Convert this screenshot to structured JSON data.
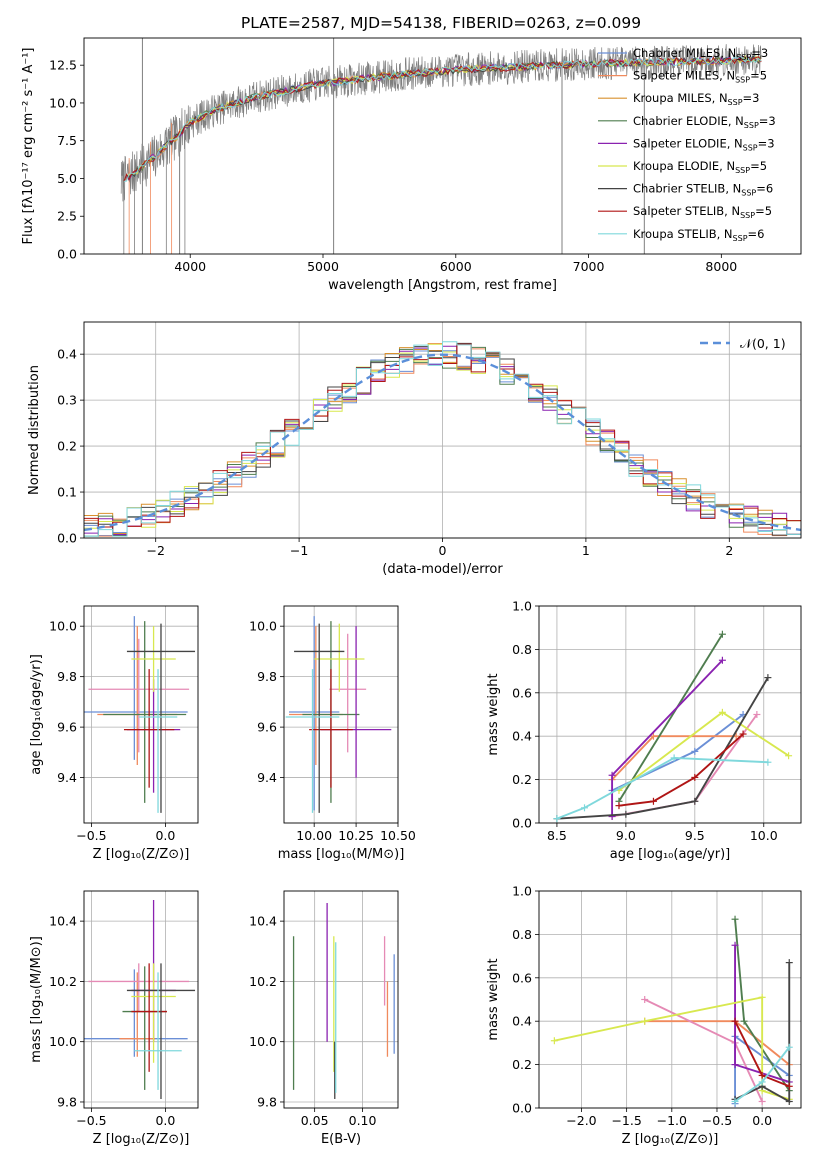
{
  "figure": {
    "title": "PLATE=2587, MJD=54138, FIBERID=0263, z=0.099"
  },
  "colors": {
    "Chabrier MILES": "#6b8fd6",
    "Salpeter MILES": "#f08a5d",
    "Kroupa MILES": "#d9902f",
    "Chabrier ELODIE": "#4f7d4f",
    "Salpeter ELODIE": "#8a22b0",
    "Kroupa ELODIE": "#d8e84f",
    "Chabrier STELIB": "#444444",
    "Salpeter STELIB": "#b01515",
    "Kroupa STELIB": "#7fd8dc",
    "pink": "#e58ab5",
    "normal": "#5b8fd9",
    "spectrum": "#7f7f7f"
  },
  "chart_data": [
    {
      "id": "spectrum",
      "type": "line",
      "xlabel": "wavelength [Angstrom, rest frame]",
      "ylabel": "Flux [fλ10⁻¹⁷ erg cm⁻² s⁻¹ A⁻¹]",
      "xlim": [
        3200,
        8600
      ],
      "ylim": [
        0,
        14.3
      ],
      "xticks": [
        4000,
        5000,
        6000,
        7000,
        8000
      ],
      "yticks": [
        0.0,
        2.5,
        5.0,
        7.5,
        10.0,
        12.5
      ],
      "grid": false,
      "legend_position": "right",
      "legend": [
        {
          "label": "Chabrier MILES, N",
          "sub": "SSP",
          "suffix": "=3",
          "color": "#6b8fd6"
        },
        {
          "label": "Salpeter MILES, N",
          "sub": "SSP",
          "suffix": "=5",
          "color": "#f08a5d"
        },
        {
          "label": "Kroupa MILES, N",
          "sub": "SSP",
          "suffix": "=3",
          "color": "#d9902f"
        },
        {
          "label": "Chabrier ELODIE, N",
          "sub": "SSP",
          "suffix": "=3",
          "color": "#4f7d4f"
        },
        {
          "label": "Salpeter ELODIE, N",
          "sub": "SSP",
          "suffix": "=3",
          "color": "#8a22b0"
        },
        {
          "label": "Kroupa ELODIE, N",
          "sub": "SSP",
          "suffix": "=5",
          "color": "#d8e84f"
        },
        {
          "label": "Chabrier STELIB, N",
          "sub": "SSP",
          "suffix": "=6",
          "color": "#444444"
        },
        {
          "label": "Salpeter STELIB, N",
          "sub": "SSP",
          "suffix": "=5",
          "color": "#b01515"
        },
        {
          "label": "Kroupa STELIB, N",
          "sub": "SSP",
          "suffix": "=6",
          "color": "#7fd8dc"
        }
      ],
      "continuum": {
        "wavelength": [
          3480,
          3600,
          3750,
          3900,
          4000,
          4200,
          4500,
          5000,
          5500,
          6000,
          6500,
          7000,
          7500,
          8000,
          8300
        ],
        "flux": [
          4.8,
          5.5,
          6.6,
          7.8,
          8.7,
          9.6,
          10.4,
          11.3,
          11.8,
          12.2,
          12.4,
          12.6,
          12.7,
          12.8,
          12.9
        ]
      },
      "spikes": [
        {
          "wavelength": 3640,
          "low": 0,
          "high": 14.3
        },
        {
          "wavelength": 3920,
          "low": 0,
          "high": 9.0
        },
        {
          "wavelength": 5080,
          "low": 0,
          "high": 14.3
        },
        {
          "wavelength": 6800,
          "low": 0,
          "high": 12.9
        },
        {
          "wavelength": 7420,
          "low": 0,
          "high": 13.6
        }
      ]
    },
    {
      "id": "residuals",
      "type": "line",
      "xlabel": "(data-model)/error",
      "ylabel": "Normed distribution",
      "xlim": [
        -2.5,
        2.5
      ],
      "ylim": [
        0,
        0.47
      ],
      "xticks": [
        -2,
        -1,
        0,
        1,
        2
      ],
      "yticks": [
        0.0,
        0.1,
        0.2,
        0.3,
        0.4
      ],
      "grid": true,
      "legend_position": "upper right",
      "normal_label": "𝒩(0, 1)",
      "normal": {
        "mu": 0,
        "sigma": 1
      },
      "bin_width": 0.1
    },
    {
      "id": "z-age",
      "type": "scatter",
      "xlabel": "Z [log₁₀(Z/Z⊙)]",
      "ylabel": "age  [log₁₀(age/yr)]",
      "xlim": [
        -0.55,
        0.22
      ],
      "ylim": [
        9.22,
        10.08
      ],
      "xticks": [
        -0.5,
        0.0
      ],
      "yticks": [
        9.4,
        9.6,
        9.8,
        10.0
      ],
      "grid": true,
      "points": [
        {
          "color": "#6b8fd6",
          "x": -0.21,
          "y": 9.66,
          "xerr": 0.36,
          "ylo": 9.47,
          "yhi": 10.04
        },
        {
          "color": "#f08a5d",
          "x": -0.19,
          "y": 9.65,
          "xerr": 0.27,
          "ylo": 9.45,
          "yhi": 10.0
        },
        {
          "color": "#e58ab5",
          "x": -0.18,
          "y": 9.75,
          "xerr": 0.34,
          "ylo": 9.5,
          "yhi": 9.95
        },
        {
          "color": "#4f7d4f",
          "x": -0.14,
          "y": 9.65,
          "xerr": 0.28,
          "ylo": 9.3,
          "yhi": 10.02
        },
        {
          "color": "#8a22b0",
          "x": -0.08,
          "y": 9.59,
          "xerr": 0.18,
          "ylo": 9.34,
          "yhi": 9.79
        },
        {
          "color": "#d8e84f",
          "x": -0.08,
          "y": 9.87,
          "xerr": 0.15,
          "ylo": 9.74,
          "yhi": 10.0
        },
        {
          "color": "#b01515",
          "x": -0.11,
          "y": 9.59,
          "xerr": 0.17,
          "ylo": 9.36,
          "yhi": 9.83
        },
        {
          "color": "#444444",
          "x": -0.03,
          "y": 9.9,
          "xerr": 0.23,
          "ylo": 9.26,
          "yhi": 10.01
        },
        {
          "color": "#7fd8dc",
          "x": -0.05,
          "y": 9.64,
          "xerr": 0.13,
          "ylo": 9.26,
          "yhi": 9.83
        }
      ]
    },
    {
      "id": "mass-age",
      "type": "scatter",
      "xlabel": "mass [log₁₀(M/M⊙)]",
      "ylabel": "",
      "xlim": [
        9.82,
        10.5
      ],
      "ylim": [
        9.22,
        10.08
      ],
      "xticks": [
        10.0,
        10.25,
        10.5
      ],
      "yticks": [
        9.4,
        9.6,
        9.8,
        10.0
      ],
      "grid": true,
      "points": [
        {
          "color": "#6b8fd6",
          "x": 10.0,
          "y": 9.66,
          "xerr": 0.15,
          "ylo": 9.27,
          "yhi": 10.04
        },
        {
          "color": "#f08a5d",
          "x": 10.01,
          "y": 9.65,
          "xerr": 0.16,
          "ylo": 9.45,
          "yhi": 10.0
        },
        {
          "color": "#e58ab5",
          "x": 10.2,
          "y": 9.75,
          "xerr": 0.11,
          "ylo": 9.5,
          "yhi": 9.97
        },
        {
          "color": "#4f7d4f",
          "x": 10.1,
          "y": 9.65,
          "xerr": 0.17,
          "ylo": 9.3,
          "yhi": 10.02
        },
        {
          "color": "#8a22b0",
          "x": 10.25,
          "y": 9.59,
          "xerr": 0.21,
          "ylo": 9.4,
          "yhi": 10.0
        },
        {
          "color": "#d8e84f",
          "x": 10.15,
          "y": 9.87,
          "xerr": 0.15,
          "ylo": 9.74,
          "yhi": 10.01
        },
        {
          "color": "#b01515",
          "x": 10.1,
          "y": 9.59,
          "xerr": 0.13,
          "ylo": 9.36,
          "yhi": 9.83
        },
        {
          "color": "#444444",
          "x": 10.03,
          "y": 9.9,
          "xerr": 0.15,
          "ylo": 9.26,
          "yhi": 10.01
        },
        {
          "color": "#7fd8dc",
          "x": 9.99,
          "y": 9.64,
          "xerr": 0.16,
          "ylo": 9.26,
          "yhi": 9.83
        }
      ]
    },
    {
      "id": "mass-weight-age",
      "type": "line",
      "xlabel": "age  [log₁₀(age/yr)]",
      "ylabel": "mass weight",
      "xlim": [
        8.37,
        10.27
      ],
      "ylim": [
        0,
        1
      ],
      "xticks": [
        8.5,
        9.0,
        9.5,
        10.0
      ],
      "yticks": [
        0.0,
        0.2,
        0.4,
        0.6,
        0.8,
        1.0
      ],
      "grid": true,
      "series": [
        {
          "color": "#6b8fd6",
          "x": [
            8.9,
            9.5,
            9.85
          ],
          "y": [
            0.15,
            0.33,
            0.5
          ]
        },
        {
          "color": "#f08a5d",
          "x": [
            8.9,
            9.2,
            9.8
          ],
          "y": [
            0.2,
            0.4,
            0.4
          ]
        },
        {
          "color": "#e58ab5",
          "x": [
            8.9,
            9.5,
            9.95
          ],
          "y": [
            0.03,
            0.1,
            0.5
          ]
        },
        {
          "color": "#4f7d4f",
          "x": [
            8.95,
            9.7
          ],
          "y": [
            0.1,
            0.87
          ]
        },
        {
          "color": "#8a22b0",
          "x": [
            8.9,
            8.9,
            9.7
          ],
          "y": [
            0.03,
            0.22,
            0.75
          ]
        },
        {
          "color": "#d8e84f",
          "x": [
            8.95,
            9.7,
            10.18
          ],
          "y": [
            0.15,
            0.51,
            0.31
          ]
        },
        {
          "color": "#444444",
          "x": [
            8.5,
            9.0,
            9.5,
            10.03
          ],
          "y": [
            0.02,
            0.04,
            0.1,
            0.67
          ]
        },
        {
          "color": "#b01515",
          "x": [
            8.95,
            9.2,
            9.5,
            9.85
          ],
          "y": [
            0.08,
            0.1,
            0.21,
            0.41
          ]
        },
        {
          "color": "#7fd8dc",
          "x": [
            8.5,
            8.7,
            9.35,
            10.03
          ],
          "y": [
            0.02,
            0.07,
            0.3,
            0.28
          ]
        }
      ]
    },
    {
      "id": "z-mass",
      "type": "scatter",
      "xlabel": "Z [log₁₀(Z/Z⊙)]",
      "ylabel": "mass [log₁₀(M/M⊙)]",
      "xlim": [
        -0.55,
        0.22
      ],
      "ylim": [
        9.78,
        10.5
      ],
      "xticks": [
        -0.5,
        0.0
      ],
      "yticks": [
        9.8,
        10.0,
        10.2,
        10.4
      ],
      "grid": true,
      "points": [
        {
          "color": "#6b8fd6",
          "x": -0.21,
          "y": 10.01,
          "xerr": 0.36,
          "ylo": 9.95,
          "yhi": 10.24
        },
        {
          "color": "#f08a5d",
          "x": -0.19,
          "y": 10.01,
          "xerr": 0.12,
          "ylo": 9.95,
          "yhi": 10.23
        },
        {
          "color": "#e58ab5",
          "x": -0.18,
          "y": 10.2,
          "xerr": 0.34,
          "ylo": 10.1,
          "yhi": 10.26
        },
        {
          "color": "#4f7d4f",
          "x": -0.14,
          "y": 10.1,
          "xerr": 0.15,
          "ylo": 9.84,
          "yhi": 10.25
        },
        {
          "color": "#8a22b0",
          "x": -0.08,
          "y": 10.17,
          "xerr": 0.15,
          "ylo": 10.0,
          "yhi": 10.47
        },
        {
          "color": "#d8e84f",
          "x": -0.08,
          "y": 10.15,
          "xerr": 0.15,
          "ylo": 9.93,
          "yhi": 10.26
        },
        {
          "color": "#b01515",
          "x": -0.11,
          "y": 10.1,
          "xerr": 0.12,
          "ylo": 9.9,
          "yhi": 10.26
        },
        {
          "color": "#444444",
          "x": -0.03,
          "y": 10.17,
          "xerr": 0.23,
          "ylo": 9.81,
          "yhi": 10.26
        },
        {
          "color": "#7fd8dc",
          "x": -0.05,
          "y": 9.97,
          "xerr": 0.16,
          "ylo": 9.84,
          "yhi": 10.23
        }
      ]
    },
    {
      "id": "ebv-mass",
      "type": "scatter",
      "xlabel": "E(B-V)",
      "ylabel": "",
      "xlim": [
        0.018,
        0.137
      ],
      "ylim": [
        9.78,
        10.5
      ],
      "xticks": [
        0.05,
        0.1
      ],
      "yticks": [
        9.8,
        10.0,
        10.2,
        10.4
      ],
      "grid": true,
      "points": [
        {
          "color": "#4f7d4f",
          "x": 0.028,
          "ylo": 9.84,
          "yhi": 10.35
        },
        {
          "color": "#8a22b0",
          "x": 0.063,
          "ylo": 10.0,
          "yhi": 10.46
        },
        {
          "color": "#d8e84f",
          "x": 0.07,
          "ylo": 9.9,
          "yhi": 10.35
        },
        {
          "color": "#444444",
          "x": 0.071,
          "ylo": 9.81,
          "yhi": 10.0
        },
        {
          "color": "#7fd8dc",
          "x": 0.072,
          "ylo": 9.83,
          "yhi": 10.33
        },
        {
          "color": "#e58ab5",
          "x": 0.123,
          "ylo": 10.12,
          "yhi": 10.35
        },
        {
          "color": "#f08a5d",
          "x": 0.126,
          "ylo": 9.95,
          "yhi": 10.2
        },
        {
          "color": "#6b8fd6",
          "x": 0.133,
          "ylo": 9.96,
          "yhi": 10.29
        }
      ]
    },
    {
      "id": "mass-weight-z",
      "type": "line",
      "xlabel": "Z [log₁₀(Z/Z⊙)]",
      "ylabel": "mass weight",
      "xlim": [
        -2.47,
        0.43
      ],
      "ylim": [
        0,
        1
      ],
      "xticks": [
        -2.0,
        -1.5,
        -1.0,
        -0.5,
        0.0
      ],
      "yticks": [
        0.0,
        0.2,
        0.4,
        0.6,
        0.8,
        1.0
      ],
      "grid": true,
      "series": [
        {
          "color": "#6b8fd6",
          "x": [
            -0.3,
            -0.3,
            0.3
          ],
          "y": [
            0.02,
            0.33,
            0.15
          ]
        },
        {
          "color": "#f08a5d",
          "x": [
            -1.3,
            -0.3,
            0.3
          ],
          "y": [
            0.4,
            0.4,
            0.2
          ]
        },
        {
          "color": "#e58ab5",
          "x": [
            -1.3,
            -0.3,
            0.0
          ],
          "y": [
            0.5,
            0.3,
            0.03
          ]
        },
        {
          "color": "#4f7d4f",
          "x": [
            -0.3,
            -0.2,
            0.3
          ],
          "y": [
            0.87,
            0.4,
            0.08
          ]
        },
        {
          "color": "#8a22b0",
          "x": [
            -0.3,
            -0.3,
            0.3
          ],
          "y": [
            0.75,
            0.2,
            0.12
          ]
        },
        {
          "color": "#d8e84f",
          "x": [
            -2.3,
            -1.3,
            0.0,
            0.0,
            0.3
          ],
          "y": [
            0.31,
            0.4,
            0.51,
            0.08,
            0.04
          ]
        },
        {
          "color": "#444444",
          "x": [
            0.3,
            0.3,
            0.0,
            -0.3
          ],
          "y": [
            0.67,
            0.03,
            0.1,
            0.04
          ]
        },
        {
          "color": "#b01515",
          "x": [
            -0.3,
            0.0,
            0.3
          ],
          "y": [
            0.4,
            0.15,
            0.1
          ]
        },
        {
          "color": "#7fd8dc",
          "x": [
            -0.3,
            0.0,
            0.3
          ],
          "y": [
            0.03,
            0.12,
            0.28
          ]
        }
      ]
    }
  ]
}
